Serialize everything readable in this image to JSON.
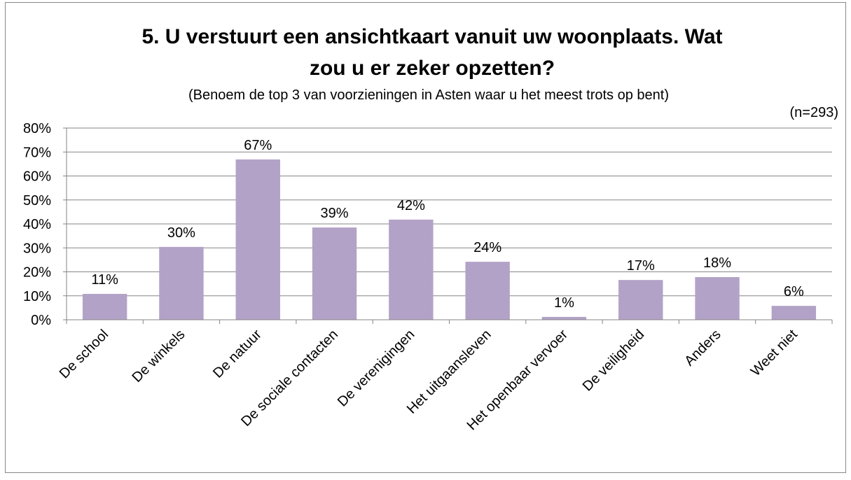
{
  "chart_data": {
    "type": "bar",
    "title": [
      "5. U verstuurt een ansichtkaart vanuit uw woonplaats. Wat",
      "zou u er zeker opzetten?"
    ],
    "subtitle": "(Benoem de top 3 van voorzieningen in Asten waar u het meest trots op bent)",
    "annotation": "(n=293)",
    "categories": [
      "De school",
      "De winkels",
      "De natuur",
      "De sociale contacten",
      "De verenigingen",
      "Het uitgaansleven",
      "Het openbaar vervoer",
      "De veiligheid",
      "Anders",
      "Weet niet"
    ],
    "values": [
      10.8,
      30.4,
      66.9,
      38.5,
      41.8,
      24.2,
      1.2,
      16.6,
      17.8,
      5.8
    ],
    "value_labels": [
      "11%",
      "30%",
      "67%",
      "39%",
      "42%",
      "24%",
      "1%",
      "17%",
      "18%",
      "6%"
    ],
    "color": "#b3a2c7",
    "ylim": [
      0,
      80
    ],
    "yticks": [
      {
        "value": 0,
        "label": "0%"
      },
      {
        "value": 10,
        "label": "10%"
      },
      {
        "value": 20,
        "label": "20%"
      },
      {
        "value": 30,
        "label": "30%"
      },
      {
        "value": 40,
        "label": "40%"
      },
      {
        "value": 50,
        "label": "50%"
      },
      {
        "value": 60,
        "label": "60%"
      },
      {
        "value": 70,
        "label": "70%"
      },
      {
        "value": 80,
        "label": "80%"
      }
    ],
    "grid": true
  }
}
